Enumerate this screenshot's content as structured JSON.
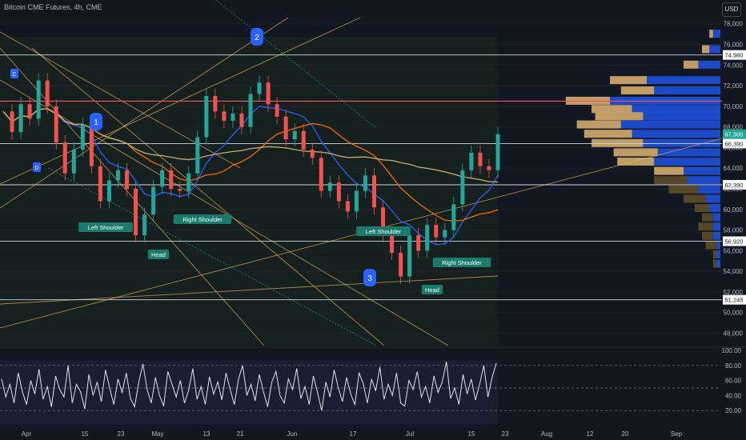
{
  "header": {
    "title": "Bitcoin CME Futures, 4h, CME",
    "currency": "USD"
  },
  "chart_data": {
    "type": "line",
    "title": "Bitcoin CME Futures, 4h, CME",
    "price_axis": {
      "ticks": [
        "78,000",
        "76,000",
        "74,000",
        "72,000",
        "70,000",
        "68,000",
        "66,000",
        "64,000",
        "62,000",
        "60,000",
        "58,000",
        "56,000",
        "54,000",
        "52,000",
        "50,000",
        "48,000"
      ],
      "range": [
        46800,
        78600
      ]
    },
    "time_axis": {
      "ticks": [
        "Apr",
        "15",
        "23",
        "May",
        "13",
        "21",
        "Jun",
        "17",
        "Jul",
        "15",
        "23",
        "Aug",
        "12",
        "20",
        "Sep"
      ]
    },
    "horizontal_levels": [
      {
        "value": 74980,
        "label": "74,980"
      },
      {
        "value": 70500,
        "label": ""
      },
      {
        "value": 66390,
        "label": "66,390"
      },
      {
        "value": 62390,
        "label": "62,390"
      },
      {
        "value": 56920,
        "label": "56,920"
      },
      {
        "value": 51245,
        "label": "51,245"
      }
    ],
    "last_price": {
      "value": 67300,
      "label": "67,300"
    },
    "price_series": [
      {
        "t": 0,
        "v": 69500
      },
      {
        "t": 1,
        "v": 67500
      },
      {
        "t": 2,
        "v": 70200
      },
      {
        "t": 3,
        "v": 68800
      },
      {
        "t": 4,
        "v": 72500
      },
      {
        "t": 5,
        "v": 70000
      },
      {
        "t": 6,
        "v": 66500
      },
      {
        "t": 7,
        "v": 63500
      },
      {
        "t": 8,
        "v": 65800
      },
      {
        "t": 9,
        "v": 68200
      },
      {
        "t": 10,
        "v": 64200
      },
      {
        "t": 11,
        "v": 60800
      },
      {
        "t": 12,
        "v": 62800
      },
      {
        "t": 13,
        "v": 63800
      },
      {
        "t": 14,
        "v": 62000
      },
      {
        "t": 15,
        "v": 57500
      },
      {
        "t": 16,
        "v": 59500
      },
      {
        "t": 17,
        "v": 62200
      },
      {
        "t": 18,
        "v": 63800
      },
      {
        "t": 19,
        "v": 62000
      },
      {
        "t": 20,
        "v": 61800
      },
      {
        "t": 21,
        "v": 63500
      },
      {
        "t": 22,
        "v": 67000
      },
      {
        "t": 23,
        "v": 71000
      },
      {
        "t": 24,
        "v": 69500
      },
      {
        "t": 25,
        "v": 68600
      },
      {
        "t": 26,
        "v": 69300
      },
      {
        "t": 27,
        "v": 68000
      },
      {
        "t": 28,
        "v": 71200
      },
      {
        "t": 29,
        "v": 72300
      },
      {
        "t": 30,
        "v": 70200
      },
      {
        "t": 31,
        "v": 69000
      },
      {
        "t": 32,
        "v": 66800
      },
      {
        "t": 33,
        "v": 67600
      },
      {
        "t": 34,
        "v": 65800
      },
      {
        "t": 35,
        "v": 65000
      },
      {
        "t": 36,
        "v": 61800
      },
      {
        "t": 37,
        "v": 62600
      },
      {
        "t": 38,
        "v": 60800
      },
      {
        "t": 39,
        "v": 59800
      },
      {
        "t": 40,
        "v": 61800
      },
      {
        "t": 41,
        "v": 63300
      },
      {
        "t": 42,
        "v": 60200
      },
      {
        "t": 43,
        "v": 57500
      },
      {
        "t": 44,
        "v": 55800
      },
      {
        "t": 45,
        "v": 53500
      },
      {
        "t": 46,
        "v": 57500
      },
      {
        "t": 47,
        "v": 56000
      },
      {
        "t": 48,
        "v": 58500
      },
      {
        "t": 49,
        "v": 57300
      },
      {
        "t": 50,
        "v": 58000
      },
      {
        "t": 51,
        "v": 60500
      },
      {
        "t": 52,
        "v": 63800
      },
      {
        "t": 53,
        "v": 65500
      },
      {
        "t": 54,
        "v": 64200
      },
      {
        "t": 55,
        "v": 63800
      },
      {
        "t": 56,
        "v": 67300
      }
    ],
    "pattern_labels": [
      {
        "text": "Left Shoulder"
      },
      {
        "text": "Head"
      },
      {
        "text": "Right Shoulder"
      },
      {
        "text": "Left Shoulder"
      },
      {
        "text": "Head"
      },
      {
        "text": "Right Shoulder"
      }
    ],
    "wave_labels": [
      "1",
      "2",
      "3"
    ],
    "marker_letters": [
      "C",
      "D"
    ],
    "volume_profile": [
      {
        "price": 77000,
        "up": 1,
        "down": 2
      },
      {
        "price": 75500,
        "up": 2,
        "down": 3
      },
      {
        "price": 74000,
        "up": 4,
        "down": 6
      },
      {
        "price": 72500,
        "up": 10,
        "down": 20
      },
      {
        "price": 71500,
        "up": 9,
        "down": 18
      },
      {
        "price": 70500,
        "up": 12,
        "down": 30
      },
      {
        "price": 69700,
        "up": 11,
        "down": 24
      },
      {
        "price": 69000,
        "up": 13,
        "down": 21
      },
      {
        "price": 68200,
        "up": 12,
        "down": 27
      },
      {
        "price": 67300,
        "up": 13,
        "down": 24
      },
      {
        "price": 66400,
        "up": 14,
        "down": 21
      },
      {
        "price": 65500,
        "up": 12,
        "down": 17
      },
      {
        "price": 64600,
        "up": 10,
        "down": 18
      },
      {
        "price": 63700,
        "up": 8,
        "down": 10
      },
      {
        "price": 62800,
        "up": 9,
        "down": 9
      },
      {
        "price": 61900,
        "up": 8,
        "down": 6
      },
      {
        "price": 61000,
        "up": 6,
        "down": 4
      },
      {
        "price": 60100,
        "up": 4,
        "down": 3
      },
      {
        "price": 59200,
        "up": 3,
        "down": 2
      },
      {
        "price": 58300,
        "up": 4,
        "down": 2
      },
      {
        "price": 57400,
        "up": 3,
        "down": 2
      },
      {
        "price": 56500,
        "up": 3,
        "down": 1
      },
      {
        "price": 55600,
        "up": 1,
        "down": 1
      },
      {
        "price": 54700,
        "up": 1,
        "down": 1
      }
    ],
    "rsi": {
      "ticks": [
        "100.00",
        "80.00",
        "60.00",
        "40.00",
        "20.00"
      ],
      "range": [
        0,
        100
      ],
      "last": 83,
      "values": [
        62,
        38,
        55,
        30,
        70,
        45,
        28,
        60,
        42,
        75,
        35,
        52,
        25,
        66,
        48,
        38,
        80,
        30,
        55,
        45,
        22,
        68,
        40,
        58,
        32,
        74,
        50,
        28,
        62,
        44,
        70,
        36,
        25,
        58,
        82,
        48,
        30,
        64,
        40,
        26,
        72,
        55,
        38,
        60,
        30,
        47,
        76,
        35,
        52,
        28,
        65,
        42,
        58,
        34,
        70,
        48,
        28,
        62,
        80,
        40,
        55,
        33,
        68,
        45,
        25,
        58,
        72,
        40,
        30,
        62,
        48,
        76,
        36,
        52,
        28,
        66,
        44,
        20,
        58,
        38,
        74,
        50,
        32,
        64,
        42,
        28,
        70,
        56,
        30,
        62,
        46,
        78,
        35,
        55,
        40,
        70,
        30,
        26,
        60,
        48,
        72,
        38,
        52,
        30,
        66,
        44,
        58,
        85,
        36,
        50,
        28,
        68,
        42,
        62,
        34,
        55,
        80,
        38,
        64,
        83
      ]
    }
  }
}
